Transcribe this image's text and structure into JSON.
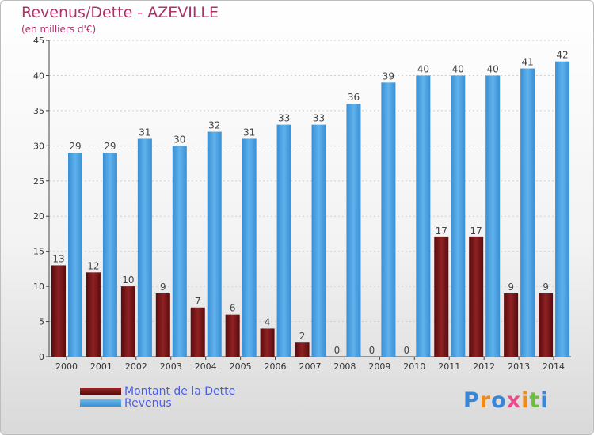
{
  "title": "Revenus/Dette - AZEVILLE",
  "subtitle": "(en milliers d'€)",
  "brand": {
    "text": "Proxiti",
    "colors": [
      "#3a86d4",
      "#f08a1c",
      "#3a86d4",
      "#e84a8a",
      "#f08a1c",
      "#6cbf3a",
      "#3a86d4"
    ]
  },
  "colors": {
    "dette": "#7a1416",
    "revenus": "#4aa3e3",
    "axis": "#444444",
    "grid": "#d0d0d0"
  },
  "legend": [
    {
      "label": "Montant de la Dette",
      "color": "#7a1416"
    },
    {
      "label": "Revenus",
      "color": "#4aa3e3"
    }
  ],
  "chart_data": {
    "type": "bar",
    "categories": [
      "2000",
      "2001",
      "2002",
      "2003",
      "2004",
      "2005",
      "2006",
      "2007",
      "2008",
      "2009",
      "2010",
      "2011",
      "2012",
      "2013",
      "2014"
    ],
    "series": [
      {
        "name": "Montant de la Dette",
        "values": [
          13,
          12,
          10,
          9,
          7,
          6,
          4,
          2,
          0,
          0,
          0,
          17,
          17,
          9,
          9
        ]
      },
      {
        "name": "Revenus",
        "values": [
          29,
          29,
          31,
          30,
          32,
          31,
          33,
          33,
          36,
          39,
          40,
          40,
          40,
          41,
          42
        ]
      }
    ],
    "ylim": [
      0,
      45
    ],
    "yticks": [
      0,
      5,
      10,
      15,
      20,
      25,
      30,
      35,
      40,
      45
    ],
    "grid": true,
    "legend_position": "bottom-left"
  }
}
